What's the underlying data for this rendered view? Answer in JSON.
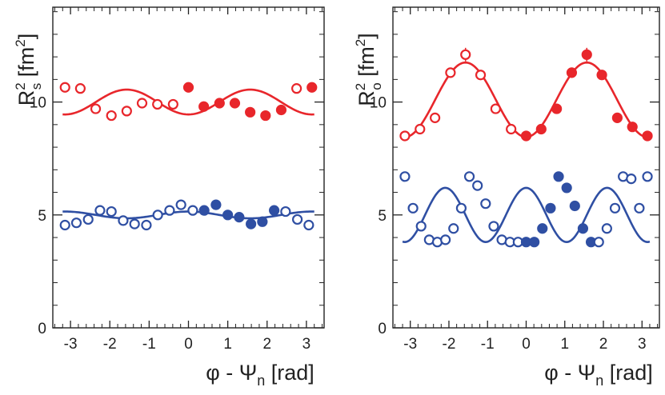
{
  "colors": {
    "red": "#e8262b",
    "blue": "#2f4fa3",
    "axis": "#222222"
  },
  "chart_data": [
    {
      "type": "scatter",
      "panel": "left",
      "ylabel_base": "R",
      "ylabel_sup": "2",
      "ylabel_sub": "s",
      "ylabel_unit": "[fm",
      "ylabel_unit_sup": "2",
      "ylabel_close": "]",
      "xlabel_phi": "φ - Ψ",
      "xlabel_sub": "n",
      "xlabel_unit": "[rad]",
      "xlim": [
        -3.45,
        3.45
      ],
      "ylim": [
        0,
        14.2
      ],
      "xticks": [
        -3,
        -2,
        -1,
        0,
        1,
        2,
        3
      ],
      "xtick_labels": [
        "-3",
        "-2",
        "-1",
        "0",
        "1",
        "2",
        "3"
      ],
      "yticks": [
        0,
        5,
        10
      ],
      "ytick_labels": [
        "0",
        "5",
        "10"
      ],
      "series": [
        {
          "name": "red",
          "fit": {
            "c": 10.0,
            "a": -0.55,
            "n": 2
          },
          "x": [
            -3.14,
            -2.75,
            -2.36,
            -1.96,
            -1.57,
            -1.18,
            -0.79,
            -0.39,
            0.0,
            0.39,
            0.79,
            1.18,
            1.57,
            1.96,
            2.36,
            2.75,
            3.14
          ],
          "y": [
            10.65,
            10.6,
            9.7,
            9.4,
            9.6,
            9.95,
            9.9,
            9.9,
            10.65,
            9.8,
            9.95,
            9.95,
            9.55,
            9.4,
            9.65,
            10.6,
            10.65
          ],
          "filled": [
            false,
            false,
            false,
            false,
            false,
            false,
            false,
            false,
            true,
            true,
            true,
            true,
            true,
            true,
            true,
            false,
            true
          ]
        },
        {
          "name": "blue",
          "fit": {
            "c": 5.0,
            "a": 0.15,
            "n": 2
          },
          "x": [
            -3.14,
            -2.85,
            -2.55,
            -2.25,
            -1.96,
            -1.66,
            -1.37,
            -1.07,
            -0.78,
            -0.48,
            -0.19,
            0.11,
            0.4,
            0.7,
            1.0,
            1.29,
            1.59,
            1.88,
            2.18,
            2.47,
            2.77,
            3.06
          ],
          "y": [
            4.55,
            4.65,
            4.8,
            5.2,
            5.15,
            4.75,
            4.6,
            4.55,
            5.0,
            5.2,
            5.45,
            5.2,
            5.2,
            5.45,
            5.0,
            4.9,
            4.6,
            4.7,
            5.2,
            5.15,
            4.8,
            4.55
          ],
          "filled": [
            false,
            false,
            false,
            false,
            false,
            false,
            false,
            false,
            false,
            false,
            false,
            false,
            true,
            true,
            true,
            true,
            true,
            true,
            true,
            false,
            false,
            false
          ]
        }
      ]
    },
    {
      "type": "scatter",
      "panel": "right",
      "ylabel_base": "R",
      "ylabel_sup": "2",
      "ylabel_sub": "o",
      "ylabel_unit": "[fm",
      "ylabel_unit_sup": "2",
      "ylabel_close": "]",
      "xlabel_phi": "φ - Ψ",
      "xlabel_sub": "n",
      "xlabel_unit": "[rad]",
      "xlim": [
        -3.45,
        3.45
      ],
      "ylim": [
        0,
        14.2
      ],
      "xticks": [
        -3,
        -2,
        -1,
        0,
        1,
        2,
        3
      ],
      "xtick_labels": [
        "-3",
        "-2",
        "-1",
        "0",
        "1",
        "2",
        "3"
      ],
      "yticks": [
        0,
        5,
        10
      ],
      "ytick_labels": [
        "0",
        "5",
        "10"
      ],
      "series": [
        {
          "name": "red",
          "fit": {
            "c": 10.1,
            "a": -1.65,
            "n": 2
          },
          "x": [
            -3.14,
            -2.75,
            -2.36,
            -1.96,
            -1.57,
            -1.18,
            -0.79,
            -0.39,
            0.0,
            0.39,
            0.79,
            1.18,
            1.57,
            1.96,
            2.36,
            2.75,
            3.14
          ],
          "y": [
            8.5,
            8.8,
            9.3,
            11.3,
            12.1,
            11.2,
            9.7,
            8.8,
            8.5,
            8.8,
            9.7,
            11.3,
            12.1,
            11.2,
            9.3,
            8.9,
            8.5
          ],
          "filled": [
            false,
            false,
            false,
            false,
            false,
            false,
            false,
            false,
            true,
            true,
            true,
            true,
            true,
            true,
            true,
            true,
            true
          ],
          "errors": [
            0.15,
            0.15,
            0.15,
            0.2,
            0.3,
            0.2,
            0.15,
            0.15,
            0.15,
            0.15,
            0.2,
            0.2,
            0.3,
            0.2,
            0.15,
            0.15,
            0.15
          ]
        },
        {
          "name": "blue",
          "fit": {
            "c": 5.0,
            "a": 1.2,
            "n": 3
          },
          "x": [
            -3.14,
            -2.93,
            -2.72,
            -2.51,
            -2.3,
            -2.09,
            -1.88,
            -1.68,
            -1.47,
            -1.26,
            -1.05,
            -0.84,
            -0.63,
            -0.42,
            -0.21,
            0.0,
            0.21,
            0.42,
            0.63,
            0.84,
            1.05,
            1.26,
            1.47,
            1.68,
            1.88,
            2.09,
            2.3,
            2.51,
            2.72,
            2.93,
            3.14
          ],
          "y": [
            6.7,
            5.3,
            4.5,
            3.9,
            3.8,
            3.9,
            4.4,
            5.3,
            6.7,
            6.3,
            5.5,
            4.5,
            3.9,
            3.8,
            3.8,
            3.8,
            3.8,
            4.4,
            5.3,
            6.7,
            6.2,
            5.4,
            4.4,
            3.8,
            3.8,
            4.4,
            5.3,
            6.7,
            6.6,
            5.3,
            6.7
          ],
          "filled": [
            false,
            false,
            false,
            false,
            false,
            false,
            false,
            false,
            false,
            false,
            false,
            false,
            false,
            false,
            false,
            true,
            true,
            true,
            true,
            true,
            true,
            true,
            true,
            true,
            false,
            false,
            false,
            false,
            false,
            false,
            false
          ]
        }
      ]
    }
  ]
}
